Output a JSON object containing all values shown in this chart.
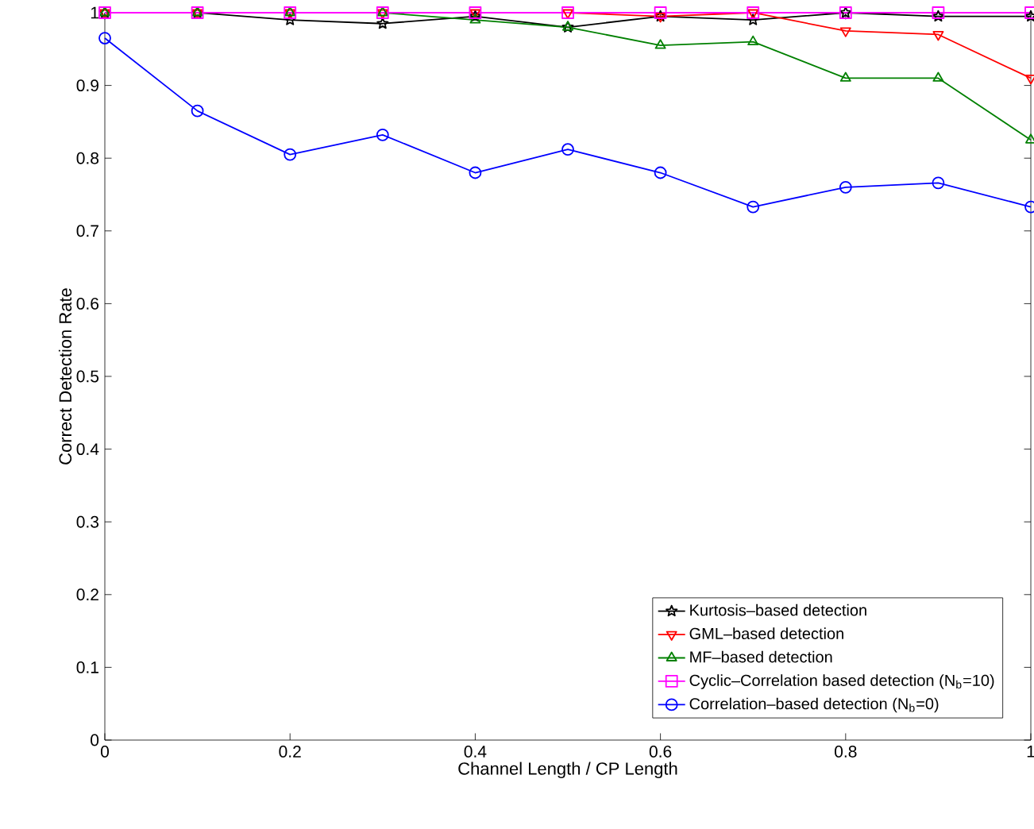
{
  "chart_data": {
    "type": "line",
    "xlabel": "Channel Length / CP Length",
    "ylabel": "Correct Detection Rate",
    "x": [
      0,
      0.1,
      0.2,
      0.3,
      0.4,
      0.5,
      0.6,
      0.7,
      0.8,
      0.9,
      1.0
    ],
    "xlim": [
      0,
      1
    ],
    "ylim": [
      0,
      1
    ],
    "xticks": [
      0,
      0.2,
      0.4,
      0.6,
      0.8,
      1
    ],
    "yticks": [
      0,
      0.1,
      0.2,
      0.3,
      0.4,
      0.5,
      0.6,
      0.7,
      0.8,
      0.9,
      1
    ],
    "grid": false,
    "legend": "bottom right",
    "line_style": "solid",
    "series": [
      {
        "name": "Kurtosis–based detection",
        "color": "#000000",
        "marker": "star",
        "values": [
          1,
          1,
          0.99,
          0.985,
          0.995,
          0.98,
          0.995,
          0.99,
          1,
          0.995,
          0.995
        ]
      },
      {
        "name": "GML–based detection",
        "color": "#ff0000",
        "marker": "triangle-down",
        "values": [
          1,
          1,
          1,
          1,
          1,
          1,
          0.995,
          1,
          0.975,
          0.97,
          0.91
        ]
      },
      {
        "name": "MF–based detection",
        "color": "#008000",
        "marker": "triangle",
        "values": [
          1,
          1,
          1,
          1,
          0.99,
          0.98,
          0.955,
          0.96,
          0.91,
          0.91,
          0.825
        ]
      },
      {
        "name": "Cyclic–Correlation based detection (N$_{b}$=10)",
        "color": "#ff00ff",
        "marker": "square",
        "values": [
          1,
          1,
          1,
          1,
          1,
          1,
          1,
          1,
          1,
          1,
          1
        ]
      },
      {
        "name": "Correlation–based detection (N$_{b}$=0)",
        "color": "#0000ff",
        "marker": "circle",
        "values": [
          0.965,
          0.865,
          0.805,
          0.832,
          0.78,
          0.812,
          0.78,
          0.733,
          0.76,
          0.766,
          0.733
        ]
      }
    ]
  }
}
